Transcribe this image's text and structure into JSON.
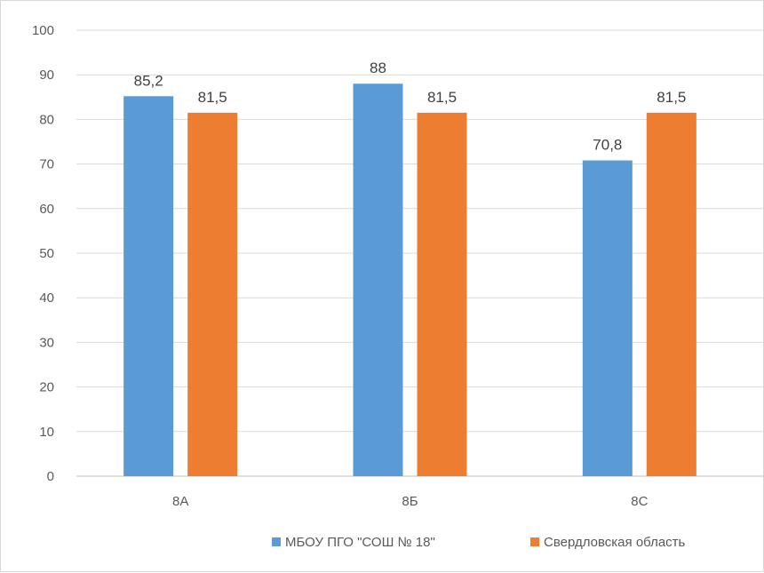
{
  "chart_data": {
    "type": "bar",
    "categories": [
      "8А",
      "8Б",
      "8С"
    ],
    "series": [
      {
        "name": "МБОУ ПГО \"СОШ № 18\"",
        "values": [
          85.2,
          88,
          70.8
        ],
        "labels": [
          "85,2",
          "88",
          "70,8"
        ],
        "color": "#5b9bd5"
      },
      {
        "name": "Свердловская область",
        "values": [
          81.5,
          81.5,
          81.5
        ],
        "labels": [
          "81,5",
          "81,5",
          "81,5"
        ],
        "color": "#ed7d31"
      }
    ],
    "ylim": [
      0,
      100
    ],
    "yticks": [
      0,
      10,
      20,
      30,
      40,
      50,
      60,
      70,
      80,
      90,
      100
    ],
    "grid": true,
    "legend": "bottom"
  }
}
